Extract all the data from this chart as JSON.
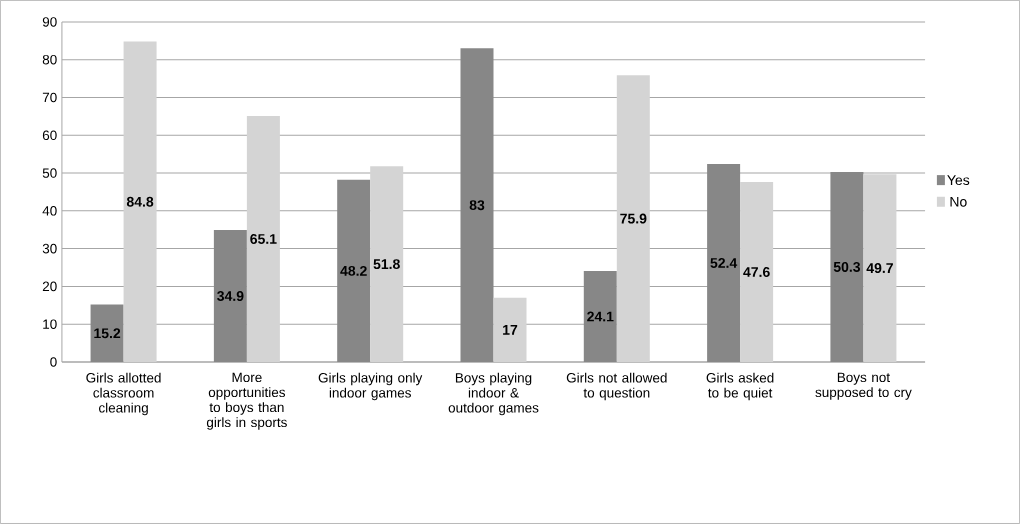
{
  "chart_data": {
    "type": "bar",
    "categories": [
      "Girls allotted classroom cleaning",
      "More opportunities to boys than girls in sports",
      "Girls playing only indoor games",
      "Boys playing indoor & outdoor games",
      "Girls not allowed to question",
      "Girls asked to be quiet",
      "Boys not supposed to cry"
    ],
    "series": [
      {
        "name": "Yes",
        "color": "#878787",
        "values": [
          15.2,
          34.9,
          48.2,
          83,
          24.1,
          52.4,
          50.3
        ],
        "value_labels": [
          "15.2",
          "34.9",
          "48.2",
          "83",
          "24.1",
          "52.4",
          "50.3"
        ]
      },
      {
        "name": "No",
        "color": "#d4d4d4",
        "values": [
          84.8,
          65.1,
          51.8,
          17,
          75.9,
          47.6,
          49.7
        ],
        "value_labels": [
          "84.8",
          "65.1",
          "51.8",
          "17",
          "75.9",
          "47.6",
          "49.7"
        ]
      }
    ],
    "ylim": [
      0,
      90
    ],
    "yticks": [
      0,
      10,
      20,
      30,
      40,
      50,
      60,
      70,
      80,
      90
    ],
    "grid": "y",
    "legend": "right"
  }
}
